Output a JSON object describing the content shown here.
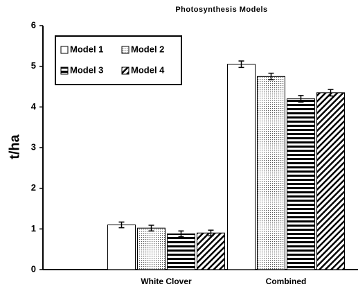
{
  "chart_data": {
    "type": "bar",
    "title": "Photosynthesis Models",
    "ylabel": "t/ha",
    "categories": [
      "White Clover",
      "Combined"
    ],
    "series": [
      {
        "name": "Model 1",
        "color": "#ffffff",
        "pattern": "none",
        "values": [
          1.1,
          5.05
        ],
        "errors": [
          0.07,
          0.08
        ]
      },
      {
        "name": "Model 2",
        "color": "#ffffff",
        "pattern": "dots",
        "values": [
          1.02,
          4.75
        ],
        "errors": [
          0.07,
          0.08
        ]
      },
      {
        "name": "Model 3",
        "color": "#ffffff",
        "pattern": "hlines",
        "values": [
          0.88,
          4.2
        ],
        "errors": [
          0.07,
          0.08
        ]
      },
      {
        "name": "Model 4",
        "color": "#ffffff",
        "pattern": "diagonal",
        "values": [
          0.9,
          4.35
        ],
        "errors": [
          0.07,
          0.08
        ]
      }
    ],
    "ylim": [
      0,
      6
    ],
    "yticks": [
      0,
      1,
      2,
      3,
      4,
      5,
      6
    ],
    "grid": false,
    "legend": "upper left"
  }
}
